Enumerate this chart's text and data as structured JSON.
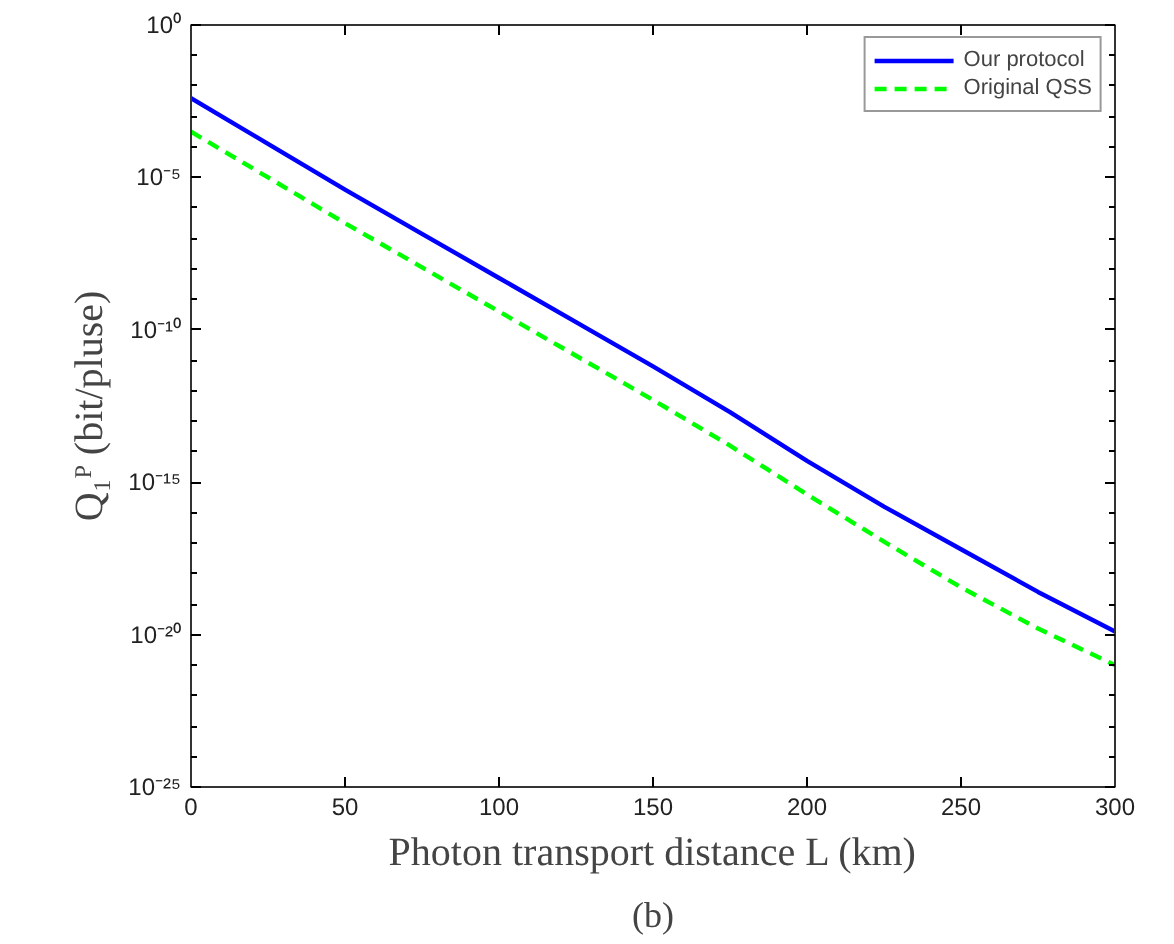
{
  "chart_data": {
    "type": "line",
    "xlabel": "Photon transport distance L (km)",
    "ylabel": "Q₁ᴾ (bit/pluse)",
    "annotations": [
      "(b)"
    ],
    "x": [
      0,
      25,
      50,
      75,
      100,
      125,
      150,
      175,
      200,
      225,
      250,
      275,
      300
    ],
    "series": [
      {
        "name": "Our protocol",
        "color": "#0000ff",
        "line_style": "solid",
        "values": [
          0.00398,
          0.000126,
          3.98e-06,
          1.41e-07,
          5.01e-09,
          1.78e-10,
          6.31e-12,
          2e-13,
          5.01e-15,
          1.58e-16,
          6.31e-18,
          2.51e-19,
          1.26e-20
        ]
      },
      {
        "name": "Original QSS",
        "color": "#00ff00",
        "line_style": "dashed",
        "values": [
          0.000316,
          1e-05,
          3.16e-07,
          1.12e-08,
          3.98e-10,
          1.41e-11,
          5.01e-13,
          1.58e-14,
          3.98e-16,
          1.12e-17,
          3.55e-19,
          1.58e-20,
          1e-21
        ]
      }
    ],
    "log": "y",
    "xlim": [
      0,
      300
    ],
    "xticks": [
      0,
      50,
      100,
      150,
      200,
      250,
      300
    ],
    "ylim": [
      1e-25,
      1
    ],
    "yticks": [
      {
        "value": 1e-25,
        "label": "10⁻²⁵"
      },
      {
        "value": 1e-20,
        "label": "10⁻²⁰"
      },
      {
        "value": 1e-15,
        "label": "10⁻¹⁵"
      },
      {
        "value": 1e-10,
        "label": "10⁻¹⁰"
      },
      {
        "value": 1e-05,
        "label": "10⁻⁵"
      },
      {
        "value": 1,
        "label": "10⁰"
      }
    ],
    "grid": false,
    "legend": "top right"
  }
}
